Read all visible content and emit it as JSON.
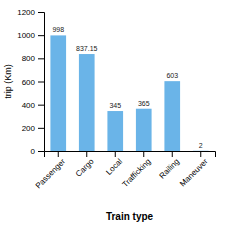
{
  "chart_data": {
    "type": "bar",
    "categories": [
      "Passenger",
      "Cargo",
      "Local",
      "Trafficking",
      "Railing",
      "Maneuver"
    ],
    "values": [
      998,
      837.15,
      345,
      365,
      603,
      2
    ],
    "color": "#6ab4e8",
    "xlabel": "Train type",
    "ylabel": "trip (Km)",
    "ylim": [
      0,
      1200
    ],
    "yticks": [
      0,
      200,
      400,
      600,
      800,
      1000,
      1200
    ],
    "data_labels": true
  }
}
